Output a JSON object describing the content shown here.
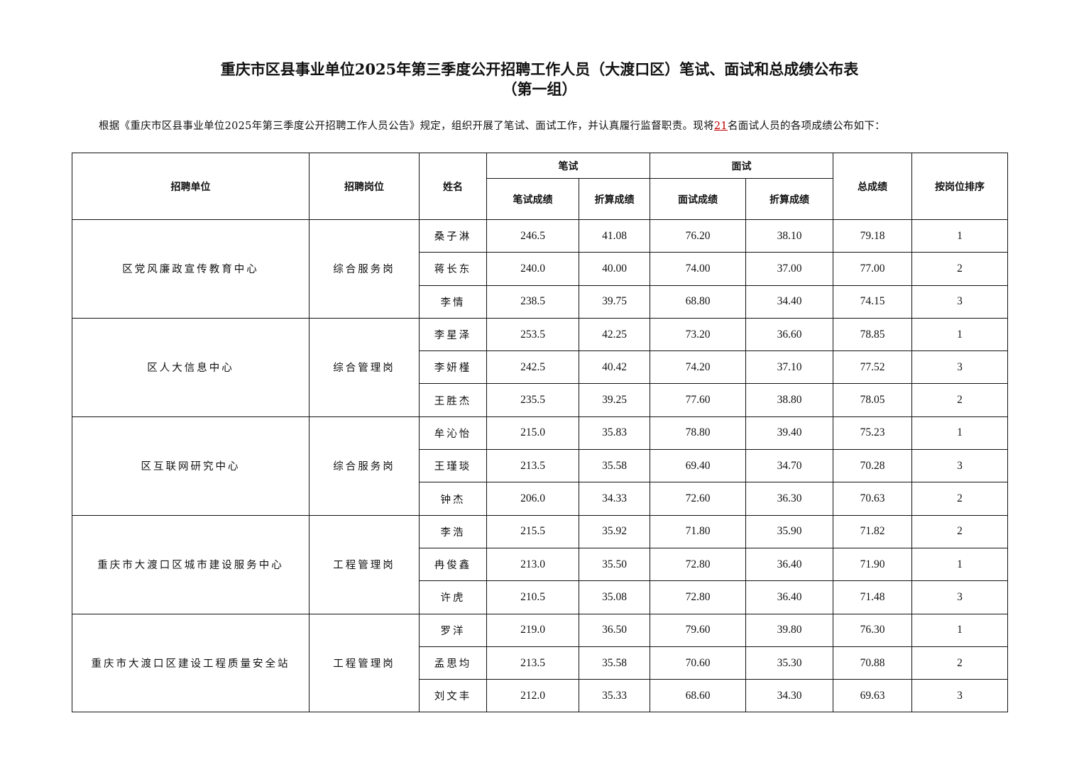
{
  "title": {
    "line1": "重庆市区县事业单位2025年第三季度公开招聘工作人员（大渡口区）笔试、面试和总成绩公布表",
    "line2": "（第一组）"
  },
  "intro": {
    "before": "根据《重庆市区县事业单位2025年第三季度公开招聘工作人员公告》规定，组织开展了笔试、面试工作，并认真履行监督职责。现将",
    "count": "21",
    "after": "名面试人员的各项成绩公布如下："
  },
  "headers": {
    "unit": "招聘单位",
    "post": "招聘岗位",
    "name": "姓名",
    "written": "笔试",
    "interview": "面试",
    "written_score": "笔试成绩",
    "written_converted": "折算成绩",
    "interview_score": "面试成绩",
    "interview_converted": "折算成绩",
    "total": "总成绩",
    "rank": "按岗位排序"
  },
  "groups": [
    {
      "unit": "区党风廉政宣传教育中心",
      "post": "综合服务岗",
      "rows": [
        [
          "桑子淋",
          "246.5",
          "41.08",
          "76.20",
          "38.10",
          "79.18",
          "1"
        ],
        [
          "蒋长东",
          "240.0",
          "40.00",
          "74.00",
          "37.00",
          "77.00",
          "2"
        ],
        [
          "李情",
          "238.5",
          "39.75",
          "68.80",
          "34.40",
          "74.15",
          "3"
        ]
      ]
    },
    {
      "unit": "区人大信息中心",
      "post": "综合管理岗",
      "rows": [
        [
          "李星泽",
          "253.5",
          "42.25",
          "73.20",
          "36.60",
          "78.85",
          "1"
        ],
        [
          "李妍槿",
          "242.5",
          "40.42",
          "74.20",
          "37.10",
          "77.52",
          "3"
        ],
        [
          "王胜杰",
          "235.5",
          "39.25",
          "77.60",
          "38.80",
          "78.05",
          "2"
        ]
      ]
    },
    {
      "unit": "区互联网研究中心",
      "post": "综合服务岗",
      "rows": [
        [
          "牟沁怡",
          "215.0",
          "35.83",
          "78.80",
          "39.40",
          "75.23",
          "1"
        ],
        [
          "王瑾琰",
          "213.5",
          "35.58",
          "69.40",
          "34.70",
          "70.28",
          "3"
        ],
        [
          "钟杰",
          "206.0",
          "34.33",
          "72.60",
          "36.30",
          "70.63",
          "2"
        ]
      ]
    },
    {
      "unit": "重庆市大渡口区城市建设服务中心",
      "post": "工程管理岗",
      "rows": [
        [
          "李浩",
          "215.5",
          "35.92",
          "71.80",
          "35.90",
          "71.82",
          "2"
        ],
        [
          "冉俊鑫",
          "213.0",
          "35.50",
          "72.80",
          "36.40",
          "71.90",
          "1"
        ],
        [
          "许虎",
          "210.5",
          "35.08",
          "72.80",
          "36.40",
          "71.48",
          "3"
        ]
      ]
    },
    {
      "unit": "重庆市大渡口区建设工程质量安全站",
      "post": "工程管理岗",
      "rows": [
        [
          "罗洋",
          "219.0",
          "36.50",
          "79.60",
          "39.80",
          "76.30",
          "1"
        ],
        [
          "孟思均",
          "213.5",
          "35.58",
          "70.60",
          "35.30",
          "70.88",
          "2"
        ],
        [
          "刘文丰",
          "212.0",
          "35.33",
          "68.60",
          "34.30",
          "69.63",
          "3"
        ]
      ]
    }
  ]
}
